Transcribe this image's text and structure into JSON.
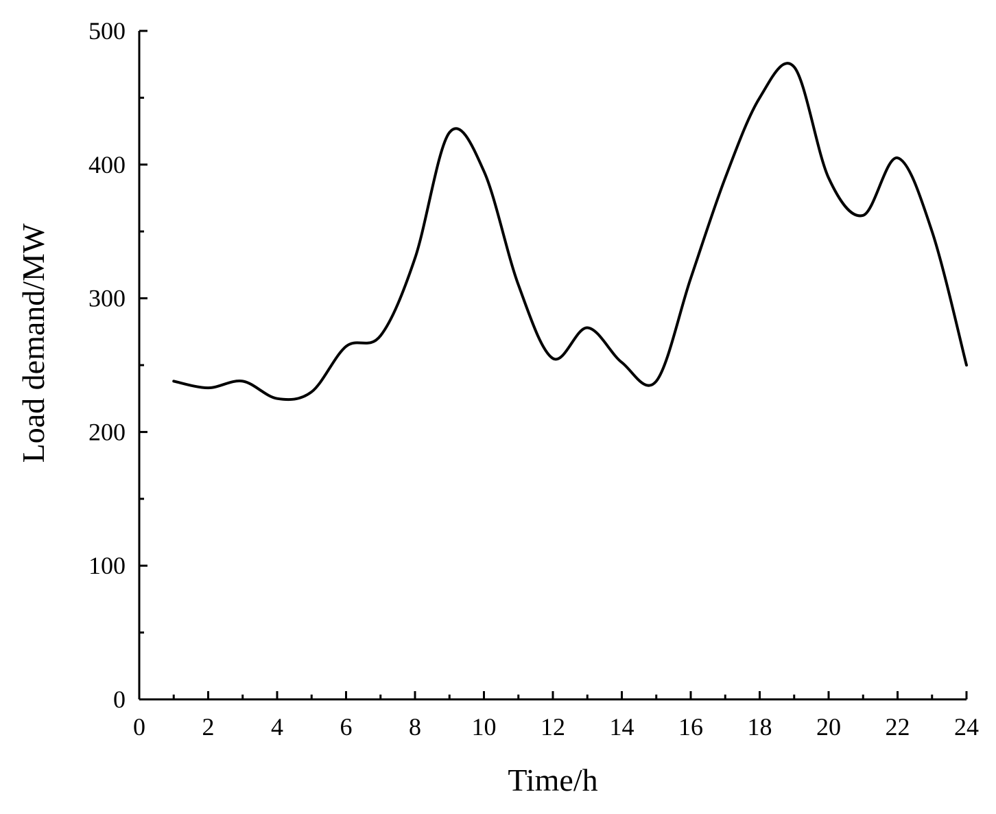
{
  "chart_data": {
    "type": "line",
    "title": "",
    "xlabel": "Time/h",
    "ylabel": "Load demand/MW",
    "xlim": [
      0,
      24
    ],
    "ylim": [
      0,
      500
    ],
    "x_ticks": [
      0,
      2,
      4,
      6,
      8,
      10,
      12,
      14,
      16,
      18,
      20,
      22,
      24
    ],
    "x_tick_labels": [
      "0",
      "2",
      "4",
      "6",
      "8",
      "10",
      "12",
      "14",
      "16",
      "18",
      "20",
      "22",
      "24"
    ],
    "y_ticks": [
      0,
      100,
      200,
      300,
      400,
      500
    ],
    "y_tick_labels": [
      "0",
      "100",
      "200",
      "300",
      "400",
      "500"
    ],
    "x_minor_step": 1,
    "y_minor_step": 50,
    "grid": false,
    "legend": "none",
    "series": [
      {
        "color": "#000000",
        "x": [
          1,
          2,
          3,
          4,
          5,
          6,
          7,
          8,
          9,
          10,
          11,
          12,
          13,
          14,
          15,
          16,
          17,
          18,
          19,
          20,
          21,
          22,
          23,
          24
        ],
        "values": [
          238,
          233,
          238,
          225,
          230,
          264,
          272,
          330,
          424,
          395,
          310,
          255,
          278,
          252,
          238,
          315,
          390,
          450,
          473,
          390,
          362,
          405,
          350,
          250
        ]
      }
    ]
  }
}
